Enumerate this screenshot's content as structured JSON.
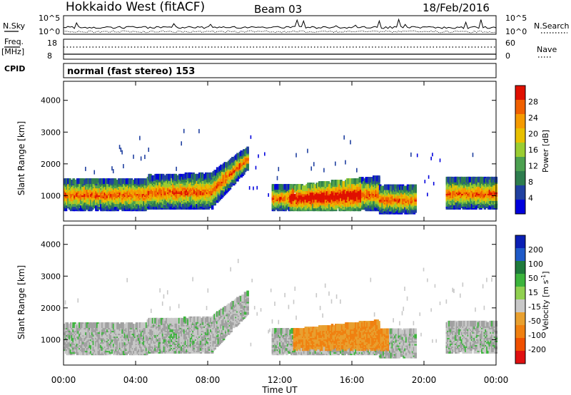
{
  "header": {
    "title": "Hokkaido West (fitACF)",
    "beam": "Beam 03",
    "date": "18/Feb/2016"
  },
  "top_panels": {
    "nsky_label": "N.Sky",
    "nsky_ticks": [
      "10^5",
      "10^0"
    ],
    "nsearch_label": "N.Search",
    "nsearch_ticks": [
      "10^5",
      "10^0"
    ],
    "freq_label": "Freq.",
    "freq_unit": "[MHz]",
    "freq_ticks": [
      "18",
      "8"
    ],
    "nave_label": "Nave",
    "nave_ticks": [
      "60",
      "0"
    ],
    "cpid_label": "CPID",
    "cpid_text": "normal (fast stereo) 153"
  },
  "colors": {
    "power_scale": [
      "#0000dd",
      "#2040a0",
      "#2e7d4e",
      "#4ca050",
      "#9acd32",
      "#e8c000",
      "#f59a00",
      "#f06000",
      "#e01000"
    ],
    "velocity_scale": [
      "#0a1fb4",
      "#1e5ac8",
      "#1f7a3c",
      "#3cb43c",
      "#90d050",
      "#c8c8c8",
      "#e8a030",
      "#f08010",
      "#f05000",
      "#e01010"
    ],
    "ground_scatter": "#a0a0a0"
  },
  "chart_data": [
    {
      "type": "heatmap",
      "panel": "power",
      "xlabel": "Time UT",
      "ylabel": "Slant Range [km]",
      "x_ticks": [
        "00:00",
        "04:00",
        "08:00",
        "12:00",
        "16:00",
        "20:00",
        "00:00"
      ],
      "y_ticks": [
        "1000",
        "2000",
        "3000",
        "4000"
      ],
      "xlim_hours": [
        0,
        24
      ],
      "ylim_km": [
        200,
        4600
      ],
      "colorbar_label": "Power [dB]",
      "colorbar_ticks": [
        "4",
        "8",
        "12",
        "16",
        "20",
        "24",
        "28"
      ],
      "colorbar_range": [
        0,
        30
      ]
    },
    {
      "type": "heatmap",
      "panel": "velocity",
      "xlabel": "Time UT",
      "ylabel": "Slant Range [km]",
      "x_ticks": [
        "00:00",
        "04:00",
        "08:00",
        "12:00",
        "16:00",
        "20:00",
        "00:00"
      ],
      "y_ticks": [
        "1000",
        "2000",
        "3000",
        "4000"
      ],
      "xlim_hours": [
        0,
        24
      ],
      "ylim_km": [
        200,
        4600
      ],
      "colorbar_label": "Velocity [m s",
      "colorbar_label_sup": "-1",
      "colorbar_label_end": "]",
      "colorbar_ticks": [
        "200",
        "100",
        "50",
        "15",
        "-15",
        "-50",
        "-100",
        "-200"
      ]
    }
  ]
}
